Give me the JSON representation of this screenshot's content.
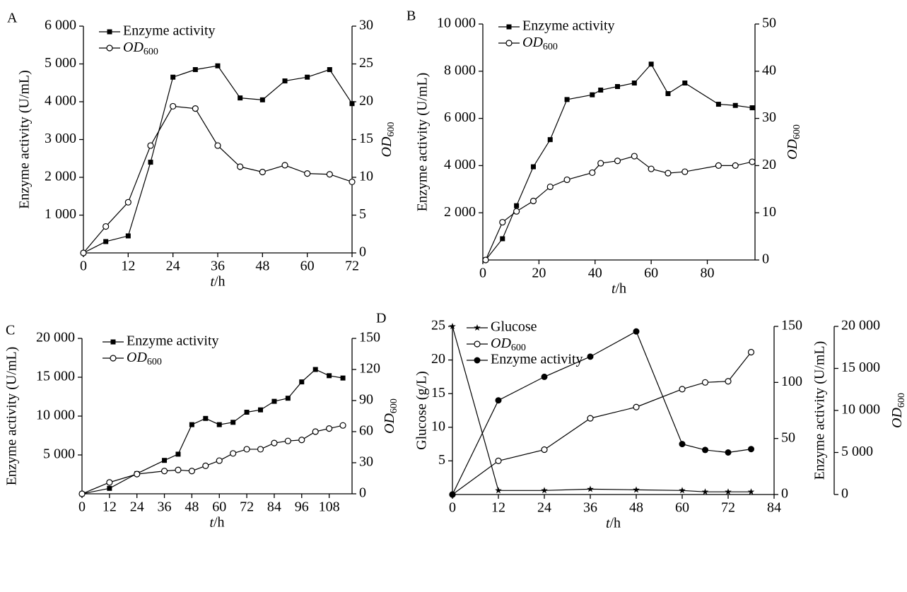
{
  "chart_data": [
    {
      "type": "line",
      "title": "A",
      "xlabel": "t/h",
      "ylabel": "Enzyme activity (U/mL)",
      "y2label": "OD600",
      "x": [
        0,
        6,
        12,
        18,
        24,
        30,
        36,
        42,
        48,
        54,
        60,
        66,
        72
      ],
      "xlim": [
        0,
        72
      ],
      "xticks": [
        0,
        12,
        24,
        36,
        48,
        60,
        72
      ],
      "ylim": [
        0,
        6000
      ],
      "yticks": [
        {
          "value": 1000,
          "label": "1 000"
        },
        {
          "value": 2000,
          "label": "2 000"
        },
        {
          "value": 3000,
          "label": "3 000"
        },
        {
          "value": 4000,
          "label": "4 000"
        },
        {
          "value": 5000,
          "label": "5 000"
        },
        {
          "value": 6000,
          "label": "6 000"
        }
      ],
      "y2lim": [
        0,
        30
      ],
      "y2ticks": [
        0,
        5,
        10,
        15,
        20,
        25,
        30
      ],
      "series": [
        {
          "name": "Enzyme activity",
          "color": "#000000",
          "marker": "square",
          "values": [
            0,
            300,
            450,
            2400,
            4650,
            4850,
            4950,
            4100,
            4050,
            4550,
            4650,
            4850,
            3950
          ]
        },
        {
          "name": "OD600",
          "color": "#000000",
          "marker": "circle-open",
          "axis": "y2",
          "values": [
            0,
            3.5,
            6.7,
            14.2,
            19.4,
            19.1,
            14.2,
            11.4,
            10.7,
            11.6,
            10.5,
            10.4,
            9.4
          ]
        }
      ]
    },
    {
      "type": "line",
      "title": "B",
      "xlabel": "t/h",
      "ylabel": "Enzyme activity (U/mL)",
      "y2label": "OD600",
      "x": [
        1,
        7,
        12,
        18,
        24,
        30,
        39,
        42,
        48,
        54,
        60,
        66,
        72,
        84,
        90,
        96
      ],
      "xlim": [
        0,
        97
      ],
      "xticks": [
        0,
        20,
        40,
        60,
        80
      ],
      "ylim": [
        0,
        10000
      ],
      "yticks": [
        {
          "value": 2000,
          "label": "2 000"
        },
        {
          "value": 4000,
          "label": "4 000"
        },
        {
          "value": 6000,
          "label": "6 000"
        },
        {
          "value": 8000,
          "label": "8 000"
        },
        {
          "value": 10000,
          "label": "10 000"
        }
      ],
      "y2lim": [
        0,
        50
      ],
      "y2ticks": [
        0,
        10,
        20,
        30,
        40,
        50
      ],
      "series": [
        {
          "name": "Enzyme activity",
          "color": "#000000",
          "marker": "square",
          "values": [
            0,
            900,
            2300,
            3950,
            5100,
            6800,
            7000,
            7200,
            7350,
            7500,
            8300,
            7050,
            7500,
            6600,
            6550,
            6450
          ]
        },
        {
          "name": "OD600",
          "color": "#000000",
          "marker": "circle-open",
          "axis": "y2",
          "values": [
            0,
            8,
            10.3,
            12.5,
            15.5,
            17,
            18.5,
            20.5,
            21,
            22,
            19.3,
            18.4,
            18.7,
            20,
            20,
            20.8
          ]
        }
      ]
    },
    {
      "type": "line",
      "title": "C",
      "xlabel": "t/h",
      "ylabel": "Enzyme activity (U/mL)",
      "y2label": "OD600",
      "x": [
        0,
        12,
        24,
        36,
        42,
        48,
        54,
        60,
        66,
        72,
        78,
        84,
        90,
        96,
        102,
        108,
        114
      ],
      "xlim": [
        0,
        118
      ],
      "xticks": [
        0,
        12,
        24,
        36,
        48,
        60,
        72,
        84,
        96,
        108
      ],
      "ylim": [
        0,
        20000
      ],
      "yticks": [
        {
          "value": 5000,
          "label": "5 000"
        },
        {
          "value": 10000,
          "label": "10 000"
        },
        {
          "value": 15000,
          "label": "15 000"
        },
        {
          "value": 20000,
          "label": "20 000"
        }
      ],
      "y2lim": [
        0,
        150
      ],
      "y2ticks": [
        0,
        30,
        60,
        90,
        120,
        150
      ],
      "series": [
        {
          "name": "Enzyme activity",
          "color": "#000000",
          "marker": "square",
          "values": [
            0,
            700,
            2600,
            4300,
            5100,
            8900,
            9700,
            8900,
            9200,
            10500,
            10800,
            11900,
            12300,
            14400,
            16000,
            15200,
            14900
          ]
        },
        {
          "name": "OD600",
          "color": "#000000",
          "marker": "circle-open",
          "axis": "y2",
          "values": [
            0,
            11,
            19,
            22,
            23,
            22,
            27,
            32,
            39,
            43,
            43,
            49,
            51,
            52,
            60,
            63,
            66
          ]
        }
      ]
    },
    {
      "type": "line",
      "title": "D",
      "xlabel": "t/h",
      "ylabel": "Glucose (g/L)",
      "y2label": "Enzyme activity (U/mL)",
      "y3label": "OD600",
      "x": [
        0,
        12,
        24,
        36,
        48,
        60,
        66,
        72,
        78
      ],
      "xlim": [
        0,
        84
      ],
      "xticks": [
        0,
        12,
        24,
        36,
        48,
        60,
        72,
        84
      ],
      "ylim": [
        0,
        25
      ],
      "yticks": [
        5,
        10,
        15,
        20,
        25
      ],
      "y2lim": [
        0,
        150
      ],
      "y2ticks": [
        0,
        50,
        100,
        150
      ],
      "y3lim": [
        0,
        20000
      ],
      "y3ticks": [
        0,
        {
          "value": 5000,
          "label": "5 000"
        },
        {
          "value": 10000,
          "label": "10 000"
        },
        {
          "value": 15000,
          "label": "15 000"
        },
        {
          "value": 20000,
          "label": "20 000"
        }
      ],
      "series": [
        {
          "name": "Glucose",
          "color": "#000000",
          "marker": "star",
          "values": [
            25,
            0.6,
            0.6,
            0.8,
            0.7,
            0.6,
            0.4,
            0.4,
            0.4
          ]
        },
        {
          "name": "OD600",
          "color": "#000000",
          "marker": "circle-open",
          "axis": "y2",
          "values": [
            0,
            30,
            40,
            68,
            78,
            94,
            100,
            101,
            127
          ]
        },
        {
          "name": "Enzyme activity",
          "color": "#000000",
          "marker": "circle",
          "axis": "y3",
          "values": [
            0,
            11200,
            14000,
            16400,
            19400,
            6000,
            5300,
            5000,
            5400
          ]
        }
      ]
    }
  ]
}
